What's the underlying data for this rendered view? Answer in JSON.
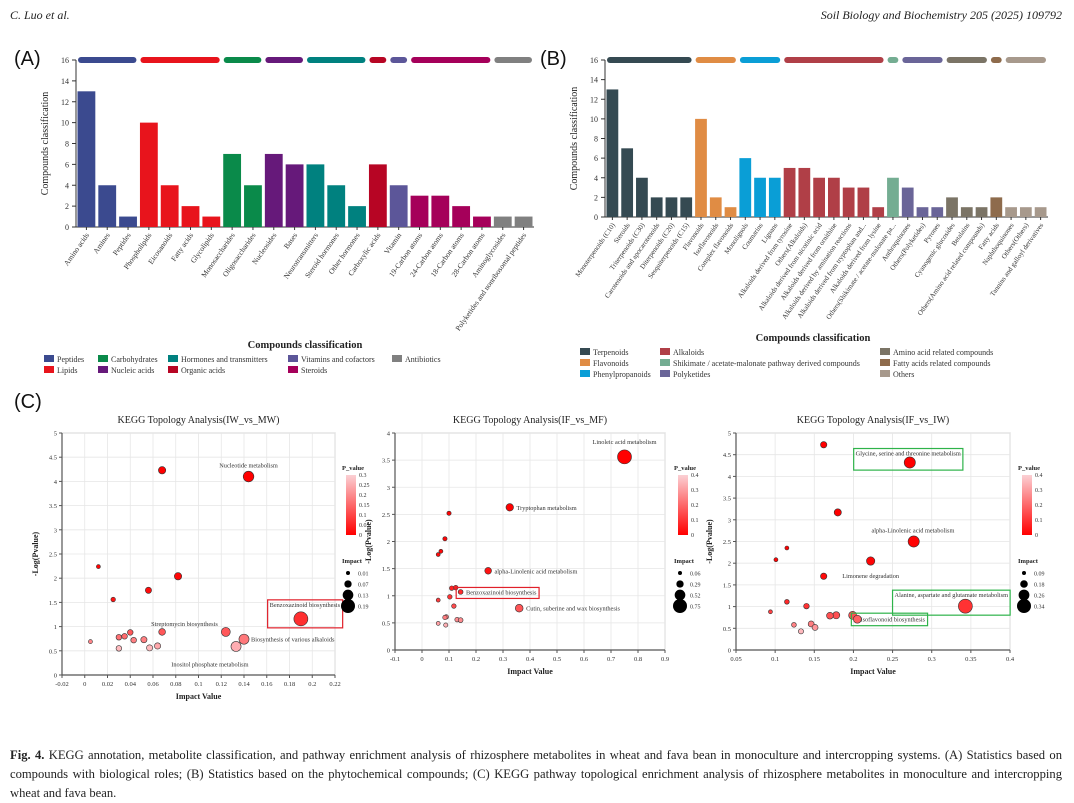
{
  "header": {
    "left": "C. Luo et al.",
    "right": "Soil Biology and Biochemistry 205 (2025) 109792"
  },
  "panel_labels": {
    "a": "(A)",
    "b": "(B)",
    "c": "(C)"
  },
  "caption": {
    "fig_label": "Fig. 4.",
    "text": "KEGG annotation, metabolite classification, and pathway enrichment analysis of rhizosphere metabolites in wheat and fava bean in monoculture and intercropping systems. (A) Statistics based on compounds with biological roles; (B) Statistics based on the phytochemical compounds; (C) KEGG pathway topological enrichment analysis of rhizosphere metabolites in monoculture and intercropping wheat and fava bean."
  },
  "chart_data": [
    {
      "id": "A",
      "type": "bar",
      "title": "",
      "xlabel": "Compounds classification",
      "ylabel": "Compounds classification",
      "ylim": [
        0,
        16
      ],
      "yticks": [
        0,
        2,
        4,
        6,
        8,
        10,
        12,
        14,
        16
      ],
      "grid": false,
      "legend_position": "bottom",
      "groups": [
        {
          "name": "Peptides",
          "color": "#3b4a8f"
        },
        {
          "name": "Lipids",
          "color": "#e8141c"
        },
        {
          "name": "Carbohydrates",
          "color": "#0a8a4a"
        },
        {
          "name": "Nucleic acids",
          "color": "#66197a"
        },
        {
          "name": "Hormones and transmitters",
          "color": "#00817f"
        },
        {
          "name": "Organic acids",
          "color": "#b70524"
        },
        {
          "name": "Vitamins and cofactors",
          "color": "#5c5699"
        },
        {
          "name": "Steroids",
          "color": "#a5005a"
        },
        {
          "name": "Antibiotics",
          "color": "#808080"
        }
      ],
      "legend_order": [
        "Peptides",
        "Carbohydrates",
        "Hormones and transmitters",
        "Vitamins and cofactors",
        "Antibiotics",
        "Lipids",
        "Nucleic acids",
        "Organic acids",
        "Steroids"
      ],
      "categories": [
        "Amino acids",
        "Amines",
        "Peptides",
        "Phospholipids",
        "Eicosanoids",
        "Fatty acids",
        "Glycolipids",
        "Monosaccharides",
        "Oligosaccharides",
        "Nucleosides",
        "Bases",
        "Neurotransmitters",
        "Steroid hormones",
        "Other hormones",
        "Carboxylic acids",
        "Vitamin",
        "19-Carbon atoms",
        "24-Carbon atoms",
        "18-Carbon atoms",
        "28-Carbon atoms",
        "Aminoglycosides",
        "Polyketides and nonribosomal peptides"
      ],
      "values": [
        13,
        4,
        1,
        10,
        4,
        2,
        1,
        7,
        4,
        7,
        6,
        6,
        4,
        2,
        6,
        4,
        3,
        3,
        2,
        1,
        1,
        1
      ],
      "category_group": [
        0,
        0,
        0,
        1,
        1,
        1,
        1,
        2,
        2,
        3,
        3,
        4,
        4,
        4,
        5,
        6,
        7,
        7,
        7,
        7,
        8,
        8
      ]
    },
    {
      "id": "B",
      "type": "bar",
      "title": "",
      "xlabel": "Compounds classification",
      "ylabel": "Compounds classification",
      "ylim": [
        0,
        16
      ],
      "yticks": [
        0,
        2,
        4,
        6,
        8,
        10,
        12,
        14,
        16
      ],
      "grid": false,
      "legend_position": "bottom",
      "groups": [
        {
          "name": "Terpenoids",
          "color": "#354a52"
        },
        {
          "name": "Flavonoids",
          "color": "#e08c44"
        },
        {
          "name": "Phenylpropanoids",
          "color": "#0a9ed6"
        },
        {
          "name": "Alkaloids",
          "color": "#b03f47"
        },
        {
          "name": "Shikimate / acetate-malonate pathway derived compounds",
          "color": "#74ad92"
        },
        {
          "name": "Polyketides",
          "color": "#6a6598"
        },
        {
          "name": "Amino acid related compounds",
          "color": "#7b7466"
        },
        {
          "name": "Fatty acids related compounds",
          "color": "#8e6b4c"
        },
        {
          "name": "Others",
          "color": "#a7998c"
        }
      ],
      "legend_order": [
        "Terpenoids",
        "Alkaloids",
        "Amino acid related compounds",
        "Flavonoids",
        "Shikimate / acetate-malonate pathway derived compounds",
        "Fatty acids related compounds",
        "Phenylpropanoids",
        "Polyketides",
        "Others"
      ],
      "categories": [
        "Monoterpenoids (C10)",
        "Steroids",
        "Triterpenoids (C30)",
        "Carotenoids and apocarotenoids",
        "Diterpenoids (C20)",
        "Sesquiterpenoids (C15)",
        "Flavonoids",
        "Isoflavonoids",
        "Complex flavonoids",
        "Monolignols",
        "Coumarins",
        "Lignans",
        "Alkaloids derived from tyrosine",
        "Others(Alkaloids)",
        "Alkaloids derived from nicotinic acid",
        "Alkaloids derived from ornithine",
        "Alkaloids derived by amination reactions",
        "Alkaloids derived from tryptophan and...",
        "Alkaloids derived from lysine",
        "Others(Shikimate / acetate-malonate pa...",
        "Anthraquinones",
        "Others(Polyketides)",
        "Pyrones",
        "Cyanogenic glucosides",
        "Betalains",
        "Others(Amino acid related compounds)",
        "Fatty acids",
        "Naphthoquinones",
        "Others(Others)",
        "Tannins and galloyl derivatives"
      ],
      "values": [
        13,
        7,
        4,
        2,
        2,
        2,
        10,
        2,
        1,
        6,
        4,
        4,
        5,
        5,
        4,
        4,
        3,
        3,
        1,
        4,
        3,
        1,
        1,
        2,
        1,
        1,
        2,
        1,
        1,
        1
      ],
      "category_group": [
        0,
        0,
        0,
        0,
        0,
        0,
        1,
        1,
        1,
        2,
        2,
        2,
        3,
        3,
        3,
        3,
        3,
        3,
        3,
        4,
        5,
        5,
        5,
        6,
        6,
        6,
        7,
        8,
        8,
        8
      ]
    },
    {
      "id": "C1",
      "type": "scatter",
      "title": "KEGG Topology Analysis(IW_vs_MW)",
      "xlabel": "Impact Value",
      "ylabel": "-Log(Pvalue)",
      "xlim": [
        -0.02,
        0.22
      ],
      "ylim": [
        0,
        5
      ],
      "xticks": [
        -0.02,
        0,
        0.02,
        0.04,
        0.06,
        0.08,
        0.1,
        0.12,
        0.14,
        0.16,
        0.18,
        0.2,
        0.22
      ],
      "yticks": [
        0,
        0.5,
        1,
        1.5,
        2,
        2.5,
        3,
        3.5,
        4,
        4.5,
        5
      ],
      "grid": true,
      "color_legend": {
        "title": "P_value",
        "ticks": [
          0.3,
          0.25,
          0.2,
          0.15,
          0.1,
          0.05,
          0
        ],
        "max": 0.3
      },
      "size_legend": {
        "title": "Impact",
        "values": [
          0.01,
          0.07,
          0.13,
          0.19
        ]
      },
      "points": [
        {
          "x": 0.068,
          "y": 4.23,
          "impact": 0.07,
          "p": 6e-05,
          "label": ""
        },
        {
          "x": 0.144,
          "y": 4.1,
          "impact": 0.13,
          "p": 8e-05,
          "label": "Nucleotide metabolism"
        },
        {
          "x": 0.012,
          "y": 2.24,
          "impact": 0.01,
          "p": 0.006,
          "label": ""
        },
        {
          "x": 0.082,
          "y": 2.04,
          "impact": 0.07,
          "p": 0.009,
          "label": ""
        },
        {
          "x": 0.056,
          "y": 1.75,
          "impact": 0.05,
          "p": 0.018,
          "label": ""
        },
        {
          "x": 0.025,
          "y": 1.56,
          "impact": 0.02,
          "p": 0.028,
          "label": ""
        },
        {
          "x": 0.19,
          "y": 1.16,
          "impact": 0.19,
          "p": 0.07,
          "label": "Benzoxazinoid biosynthesis",
          "highlight": "#e0202a"
        },
        {
          "x": 0.124,
          "y": 0.89,
          "impact": 0.1,
          "p": 0.13,
          "label": "Streptomycin biosynthesis"
        },
        {
          "x": 0.068,
          "y": 0.89,
          "impact": 0.06,
          "p": 0.13,
          "label": ""
        },
        {
          "x": 0.04,
          "y": 0.88,
          "impact": 0.04,
          "p": 0.13,
          "label": ""
        },
        {
          "x": 0.035,
          "y": 0.8,
          "impact": 0.04,
          "p": 0.16,
          "label": ""
        },
        {
          "x": 0.03,
          "y": 0.78,
          "impact": 0.04,
          "p": 0.17,
          "label": ""
        },
        {
          "x": 0.043,
          "y": 0.72,
          "impact": 0.04,
          "p": 0.19,
          "label": ""
        },
        {
          "x": 0.052,
          "y": 0.73,
          "impact": 0.05,
          "p": 0.19,
          "label": ""
        },
        {
          "x": 0.14,
          "y": 0.74,
          "impact": 0.12,
          "p": 0.18,
          "label": "Biosynthesis of various alkaloids"
        },
        {
          "x": 0.005,
          "y": 0.69,
          "impact": 0.01,
          "p": 0.2,
          "label": ""
        },
        {
          "x": 0.064,
          "y": 0.6,
          "impact": 0.05,
          "p": 0.25,
          "label": ""
        },
        {
          "x": 0.133,
          "y": 0.59,
          "impact": 0.12,
          "p": 0.26,
          "label": "Inositol phosphate metabolism"
        },
        {
          "x": 0.057,
          "y": 0.56,
          "impact": 0.05,
          "p": 0.28,
          "label": ""
        },
        {
          "x": 0.03,
          "y": 0.55,
          "impact": 0.04,
          "p": 0.28,
          "label": ""
        }
      ]
    },
    {
      "id": "C2",
      "type": "scatter",
      "title": "KEGG Topology Analysis(IF_vs_MF)",
      "xlabel": "Impact Value",
      "ylabel": "-Log(Pvalue)",
      "xlim": [
        -0.1,
        0.9
      ],
      "ylim": [
        0,
        4
      ],
      "xticks": [
        -0.1,
        0,
        0.1,
        0.2,
        0.3,
        0.4,
        0.5,
        0.6,
        0.7,
        0.8,
        0.9
      ],
      "yticks": [
        0,
        0.5,
        1,
        1.5,
        2,
        2.5,
        3,
        3.5,
        4
      ],
      "grid": true,
      "color_legend": {
        "title": "P_value",
        "ticks": [
          0.4,
          0.3,
          0.2,
          0.1,
          0
        ],
        "max": 0.4
      },
      "size_legend": {
        "title": "Impact",
        "values": [
          0.06,
          0.29,
          0.52,
          0.75
        ]
      },
      "points": [
        {
          "x": 0.75,
          "y": 3.56,
          "impact": 0.75,
          "p": 0.0003,
          "label": "Linoleic acid metabolism"
        },
        {
          "x": 0.325,
          "y": 2.63,
          "impact": 0.3,
          "p": 0.002,
          "label": "Tryptophan metabolism"
        },
        {
          "x": 0.1,
          "y": 2.52,
          "impact": 0.08,
          "p": 0.003,
          "label": ""
        },
        {
          "x": 0.085,
          "y": 2.05,
          "impact": 0.08,
          "p": 0.009,
          "label": ""
        },
        {
          "x": 0.07,
          "y": 1.82,
          "impact": 0.06,
          "p": 0.015,
          "label": ""
        },
        {
          "x": 0.06,
          "y": 1.76,
          "impact": 0.06,
          "p": 0.017,
          "label": ""
        },
        {
          "x": 0.245,
          "y": 1.46,
          "impact": 0.25,
          "p": 0.035,
          "label": "alpha-Linolenic acid metabolism"
        },
        {
          "x": 0.125,
          "y": 1.15,
          "impact": 0.1,
          "p": 0.07,
          "label": ""
        },
        {
          "x": 0.11,
          "y": 1.14,
          "impact": 0.1,
          "p": 0.07,
          "label": ""
        },
        {
          "x": 0.143,
          "y": 1.07,
          "impact": 0.12,
          "p": 0.085,
          "label": "Benzoxazinoid biosynthesis",
          "highlight": "#e0202a"
        },
        {
          "x": 0.103,
          "y": 0.98,
          "impact": 0.1,
          "p": 0.1,
          "label": ""
        },
        {
          "x": 0.06,
          "y": 0.92,
          "impact": 0.06,
          "p": 0.12,
          "label": ""
        },
        {
          "x": 0.118,
          "y": 0.81,
          "impact": 0.1,
          "p": 0.15,
          "label": ""
        },
        {
          "x": 0.36,
          "y": 0.77,
          "impact": 0.32,
          "p": 0.17,
          "label": "Cutin, suberine and wax biosynthesis"
        },
        {
          "x": 0.09,
          "y": 0.61,
          "impact": 0.09,
          "p": 0.25,
          "label": ""
        },
        {
          "x": 0.085,
          "y": 0.6,
          "impact": 0.09,
          "p": 0.25,
          "label": ""
        },
        {
          "x": 0.13,
          "y": 0.56,
          "impact": 0.1,
          "p": 0.28,
          "label": ""
        },
        {
          "x": 0.143,
          "y": 0.55,
          "impact": 0.12,
          "p": 0.28,
          "label": ""
        },
        {
          "x": 0.06,
          "y": 0.49,
          "impact": 0.06,
          "p": 0.32,
          "label": ""
        },
        {
          "x": 0.088,
          "y": 0.46,
          "impact": 0.08,
          "p": 0.35,
          "label": ""
        }
      ]
    },
    {
      "id": "C3",
      "type": "scatter",
      "title": "KEGG Topology Analysis(IF_vs_IW)",
      "xlabel": "Impact Value",
      "ylabel": "-Log(Pvalue)",
      "xlim": [
        0.05,
        0.4
      ],
      "ylim": [
        0,
        5
      ],
      "xticks": [
        0.05,
        0.1,
        0.15,
        0.2,
        0.25,
        0.3,
        0.35,
        0.4
      ],
      "yticks": [
        0,
        0.5,
        1,
        1.5,
        2,
        2.5,
        3,
        3.5,
        4,
        4.5,
        5
      ],
      "grid": true,
      "color_legend": {
        "title": "P_value",
        "ticks": [
          0.4,
          0.3,
          0.2,
          0.1,
          0
        ],
        "max": 0.4
      },
      "size_legend": {
        "title": "Impact",
        "values": [
          0.09,
          0.18,
          0.26,
          0.34
        ]
      },
      "points": [
        {
          "x": 0.162,
          "y": 4.73,
          "impact": 0.15,
          "p": 2e-05,
          "label": ""
        },
        {
          "x": 0.272,
          "y": 4.32,
          "impact": 0.27,
          "p": 5e-05,
          "label": "Glycine, serine and threonine metabolism",
          "highlight": "#2eb34a"
        },
        {
          "x": 0.18,
          "y": 3.17,
          "impact": 0.17,
          "p": 0.0007,
          "label": ""
        },
        {
          "x": 0.277,
          "y": 2.5,
          "impact": 0.27,
          "p": 0.003,
          "label": "alpha-Linolenic acid metabolism"
        },
        {
          "x": 0.115,
          "y": 2.35,
          "impact": 0.09,
          "p": 0.0045,
          "label": ""
        },
        {
          "x": 0.101,
          "y": 2.08,
          "impact": 0.09,
          "p": 0.008,
          "label": ""
        },
        {
          "x": 0.222,
          "y": 2.05,
          "impact": 0.2,
          "p": 0.009,
          "label": ""
        },
        {
          "x": 0.162,
          "y": 1.7,
          "impact": 0.15,
          "p": 0.02,
          "label": "Limonene degradation"
        },
        {
          "x": 0.343,
          "y": 1.01,
          "impact": 0.34,
          "p": 0.1,
          "label": "Alanine, aspartate and glutamate metabolism",
          "highlight": "#2eb34a"
        },
        {
          "x": 0.115,
          "y": 1.11,
          "impact": 0.11,
          "p": 0.08,
          "label": ""
        },
        {
          "x": 0.14,
          "y": 1.01,
          "impact": 0.13,
          "p": 0.1,
          "label": ""
        },
        {
          "x": 0.094,
          "y": 0.88,
          "impact": 0.09,
          "p": 0.13,
          "label": ""
        },
        {
          "x": 0.178,
          "y": 0.8,
          "impact": 0.17,
          "p": 0.16,
          "label": ""
        },
        {
          "x": 0.17,
          "y": 0.79,
          "impact": 0.16,
          "p": 0.16,
          "label": ""
        },
        {
          "x": 0.199,
          "y": 0.8,
          "impact": 0.19,
          "p": 0.16,
          "label": ""
        },
        {
          "x": 0.205,
          "y": 0.71,
          "impact": 0.19,
          "p": 0.19,
          "label": "Isoflavonoid biosynthesis",
          "highlight": "#2eb34a"
        },
        {
          "x": 0.146,
          "y": 0.6,
          "impact": 0.14,
          "p": 0.25,
          "label": ""
        },
        {
          "x": 0.124,
          "y": 0.58,
          "impact": 0.11,
          "p": 0.26,
          "label": ""
        },
        {
          "x": 0.151,
          "y": 0.52,
          "impact": 0.14,
          "p": 0.3,
          "label": ""
        },
        {
          "x": 0.133,
          "y": 0.43,
          "impact": 0.12,
          "p": 0.37,
          "label": ""
        }
      ]
    }
  ]
}
